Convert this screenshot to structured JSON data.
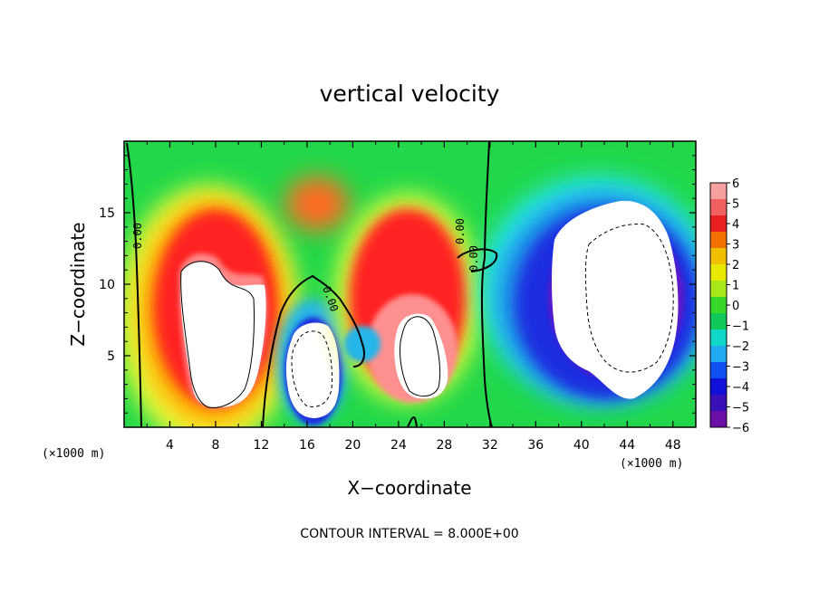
{
  "chart_data": {
    "type": "heatmap",
    "title": "vertical velocity",
    "xlabel": "X−coordinate",
    "ylabel": "Z−coordinate",
    "x_unit_left": "(×1000 m)",
    "x_unit_right": "(×1000 m)",
    "footnote": "CONTOUR INTERVAL = 8.000E+00",
    "xlim": [
      0,
      50
    ],
    "ylim": [
      0,
      20
    ],
    "x_ticks": [
      "4",
      "8",
      "12",
      "16",
      "20",
      "24",
      "28",
      "32",
      "36",
      "40",
      "44",
      "48"
    ],
    "y_ticks": [
      "5",
      "10",
      "15"
    ],
    "colorbar": {
      "ticks": [
        "6",
        "5",
        "4",
        "3",
        "2",
        "1",
        "0",
        "−1",
        "−2",
        "−3",
        "−4",
        "−5",
        "−6"
      ],
      "range": [
        -6,
        6
      ]
    },
    "contour_labels": [
      "0.00",
      "0.00",
      "0.00",
      "0.00"
    ],
    "features": [
      {
        "name": "updraft",
        "x": 9,
        "z": 7,
        "peak": 6
      },
      {
        "name": "downdraft",
        "x": 16.5,
        "z": 5,
        "peak": -6
      },
      {
        "name": "updraft",
        "x": 25.5,
        "z": 5.5,
        "peak": 6
      },
      {
        "name": "downdraft",
        "x": 44,
        "z": 9,
        "peak": -6
      }
    ],
    "grid": false
  }
}
